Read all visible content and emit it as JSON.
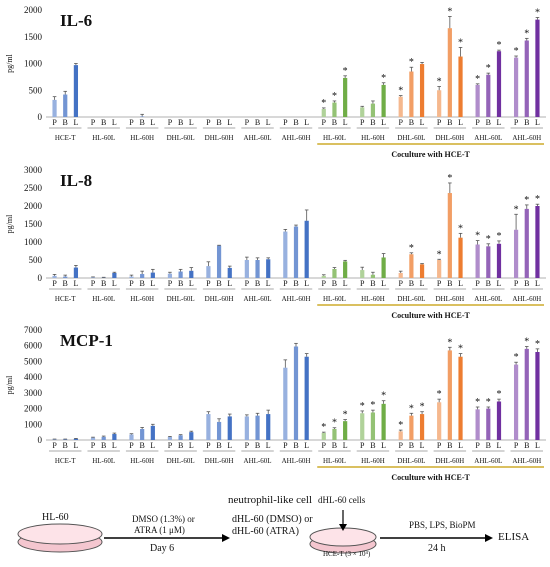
{
  "chart_data": [
    {
      "type": "bar",
      "title": "IL-6",
      "ylabel": "pg/ml",
      "ylim": [
        0,
        2000
      ],
      "yticks": [
        0,
        500,
        1000,
        1500,
        2000
      ],
      "grid": false,
      "bar_labels": [
        "P",
        "B",
        "L"
      ],
      "groups": [
        "HCE-T",
        "HL-60L",
        "HL-60H",
        "DHL-60L",
        "DHL-60H",
        "AHL-60L",
        "AHL-60H",
        "HL-60L",
        "HL-60H",
        "DHL-60L",
        "DHL-60H",
        "AHL-60L",
        "AHL-60H"
      ],
      "coculture_label": "Coculture with HCE-T",
      "values": [
        [
          320,
          420,
          970
        ],
        [
          0,
          0,
          0
        ],
        [
          0,
          10,
          0
        ],
        [
          0,
          0,
          0
        ],
        [
          0,
          0,
          0
        ],
        [
          0,
          0,
          0
        ],
        [
          0,
          0,
          0
        ],
        [
          150,
          270,
          730
        ],
        [
          180,
          250,
          600
        ],
        [
          380,
          850,
          990
        ],
        [
          500,
          1660,
          1130
        ],
        [
          600,
          790,
          1230
        ],
        [
          1110,
          1430,
          1820
        ]
      ],
      "errors": [
        [
          60,
          60,
          30
        ],
        [
          0,
          0,
          0
        ],
        [
          0,
          40,
          0
        ],
        [
          0,
          0,
          0
        ],
        [
          0,
          0,
          0
        ],
        [
          0,
          0,
          0
        ],
        [
          0,
          0,
          0
        ],
        [
          20,
          30,
          40
        ],
        [
          20,
          50,
          40
        ],
        [
          20,
          80,
          30
        ],
        [
          70,
          220,
          170
        ],
        [
          20,
          30,
          20
        ],
        [
          30,
          40,
          40
        ]
      ],
      "significant": [
        [
          false,
          false,
          false
        ],
        [
          false,
          false,
          false
        ],
        [
          false,
          false,
          false
        ],
        [
          false,
          false,
          false
        ],
        [
          false,
          false,
          false
        ],
        [
          false,
          false,
          false
        ],
        [
          false,
          false,
          false
        ],
        [
          true,
          true,
          true
        ],
        [
          false,
          false,
          true
        ],
        [
          true,
          true,
          false
        ],
        [
          true,
          true,
          true
        ],
        [
          true,
          true,
          true
        ],
        [
          true,
          true,
          true
        ]
      ]
    },
    {
      "type": "bar",
      "title": "IL-8",
      "ylabel": "pg/ml",
      "ylim": [
        0,
        3000
      ],
      "yticks": [
        0,
        500,
        1000,
        1500,
        2000,
        2500,
        3000
      ],
      "grid": false,
      "bar_labels": [
        "P",
        "B",
        "L"
      ],
      "groups": [
        "HCE-T",
        "HL-60L",
        "HL-60H",
        "DHL-60L",
        "DHL-60H",
        "AHL-60L",
        "AHL-60H",
        "HL-60L",
        "HL-60H",
        "DHL-60L",
        "DHL-60H",
        "AHL-60L",
        "AHL-60H"
      ],
      "coculture_label": "Coculture with HCE-T",
      "values": [
        [
          60,
          40,
          290
        ],
        [
          20,
          10,
          140
        ],
        [
          40,
          110,
          150
        ],
        [
          120,
          180,
          200
        ],
        [
          330,
          900,
          280
        ],
        [
          500,
          500,
          520
        ],
        [
          1290,
          1430,
          1590
        ],
        [
          60,
          250,
          460
        ],
        [
          220,
          90,
          570
        ],
        [
          140,
          660,
          380
        ],
        [
          500,
          2360,
          1120
        ],
        [
          930,
          880,
          950
        ],
        [
          1340,
          1920,
          2000
        ]
      ],
      "errors": [
        [
          40,
          40,
          60
        ],
        [
          10,
          10,
          20
        ],
        [
          40,
          80,
          90
        ],
        [
          40,
          60,
          90
        ],
        [
          120,
          10,
          50
        ],
        [
          80,
          60,
          40
        ],
        [
          60,
          40,
          300
        ],
        [
          30,
          40,
          30
        ],
        [
          80,
          70,
          110
        ],
        [
          50,
          40,
          20
        ],
        [
          20,
          280,
          120
        ],
        [
          110,
          70,
          80
        ],
        [
          430,
          110,
          50
        ]
      ],
      "significant": [
        [
          false,
          false,
          false
        ],
        [
          false,
          false,
          false
        ],
        [
          false,
          false,
          false
        ],
        [
          false,
          false,
          false
        ],
        [
          false,
          false,
          false
        ],
        [
          false,
          false,
          false
        ],
        [
          false,
          false,
          false
        ],
        [
          false,
          false,
          false
        ],
        [
          false,
          false,
          false
        ],
        [
          false,
          true,
          false
        ],
        [
          true,
          true,
          true
        ],
        [
          true,
          true,
          true
        ],
        [
          true,
          true,
          true
        ]
      ]
    },
    {
      "type": "bar",
      "title": "MCP-1",
      "ylabel": "pg/ml",
      "ylim": [
        0,
        7000
      ],
      "yticks": [
        0,
        1000,
        2000,
        3000,
        4000,
        5000,
        6000,
        7000
      ],
      "grid": false,
      "bar_labels": [
        "P",
        "B",
        "L"
      ],
      "groups": [
        "HCE-T",
        "HL-60L",
        "HL-60H",
        "DHL-60L",
        "DHL-60H",
        "AHL-60L",
        "AHL-60H",
        "HL-60L",
        "HL-60H",
        "DHL-60L",
        "DHL-60H",
        "AHL-60L",
        "AHL-60H"
      ],
      "coculture_label": "Coculture with HCE-T",
      "values": [
        [
          50,
          50,
          80
        ],
        [
          150,
          200,
          380
        ],
        [
          350,
          700,
          900
        ],
        [
          200,
          300,
          500
        ],
        [
          1650,
          1150,
          1500
        ],
        [
          1500,
          1550,
          1650
        ],
        [
          4600,
          5950,
          5300
        ],
        [
          450,
          700,
          1200
        ],
        [
          1700,
          1750,
          2300
        ],
        [
          550,
          1550,
          1650
        ],
        [
          2400,
          5700,
          5300
        ],
        [
          1950,
          2000,
          2450
        ],
        [
          4800,
          5800,
          5600
        ]
      ],
      "errors": [
        [
          10,
          10,
          20
        ],
        [
          30,
          50,
          60
        ],
        [
          50,
          100,
          100
        ],
        [
          30,
          40,
          60
        ],
        [
          150,
          200,
          150
        ],
        [
          100,
          150,
          250
        ],
        [
          500,
          200,
          200
        ],
        [
          50,
          80,
          100
        ],
        [
          150,
          150,
          200
        ],
        [
          80,
          150,
          150
        ],
        [
          200,
          200,
          200
        ],
        [
          150,
          100,
          150
        ],
        [
          150,
          150,
          200
        ]
      ],
      "significant": [
        [
          false,
          false,
          false
        ],
        [
          false,
          false,
          false
        ],
        [
          false,
          false,
          false
        ],
        [
          false,
          false,
          false
        ],
        [
          false,
          false,
          false
        ],
        [
          false,
          false,
          false
        ],
        [
          false,
          false,
          false
        ],
        [
          true,
          true,
          true
        ],
        [
          true,
          true,
          true
        ],
        [
          true,
          true,
          true
        ],
        [
          true,
          true,
          true
        ],
        [
          true,
          true,
          true
        ],
        [
          true,
          true,
          true
        ]
      ]
    }
  ],
  "colors": {
    "hce_and_mono": "#4472c4",
    "hl60": "#70ad47",
    "dhl60": "#ed7d31",
    "ahl60": "#7030a0",
    "coculture_line": "#c49a00",
    "error": "#555555",
    "sig_star": "#888888"
  },
  "series_shading": {
    "P": 0.55,
    "B": 0.75,
    "L": 1.0
  },
  "flow": {
    "hl60_label": "HL-60",
    "treatment_line1": "DMSO (1.3%) or",
    "treatment_line2": "ATRA (1 μM)",
    "day_label": "Day 6",
    "neutrophil_label": "neutrophil-like cell",
    "dhl_dmso": "dHL-60 (DMSO) or",
    "dhl_atra": "dHL-60 (ATRA)",
    "dhl_cells": "dHL-60 cells",
    "hcet_label": "HCE-T (3 × 10⁴)",
    "stimuli": "PBS, LPS, BioPM",
    "time": "24 h",
    "assay": "ELISA"
  }
}
